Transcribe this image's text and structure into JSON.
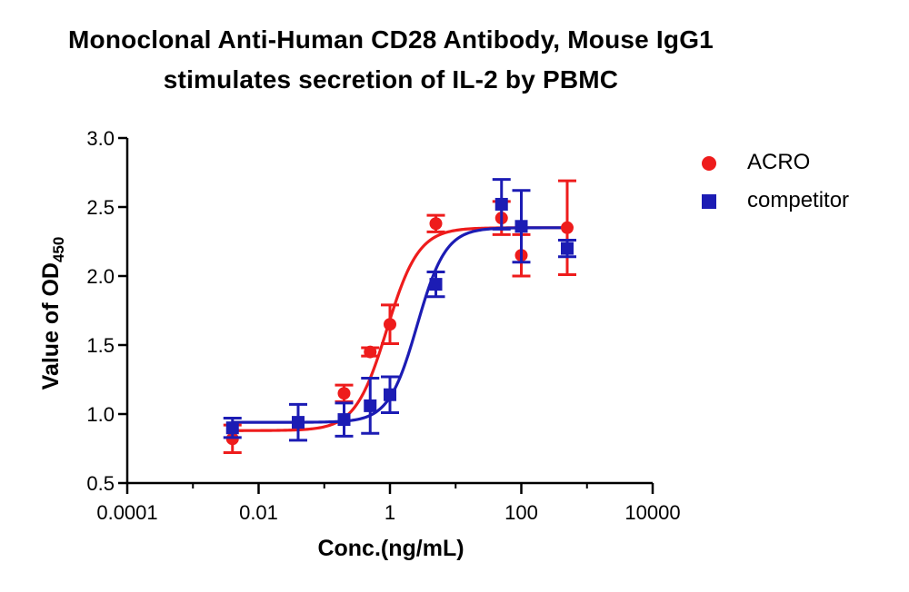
{
  "chart_data": {
    "type": "scatter",
    "title_line1": "Monoclonal Anti-Human CD28 Antibody, Mouse IgG1",
    "title_line2": "stimulates secretion of IL-2 by PBMC",
    "xlabel": "Conc.(ng/mL)",
    "ylabel_main": "Value of OD",
    "ylabel_sub": "450",
    "x_scale": "log",
    "xlim": [
      0.0001,
      10000
    ],
    "ylim": [
      0.5,
      3.0
    ],
    "x_ticks": [
      0.0001,
      0.01,
      1,
      100,
      10000
    ],
    "x_tick_labels": [
      "0.0001",
      "0.01",
      "1",
      "100",
      "10000"
    ],
    "y_ticks": [
      0.5,
      1.0,
      1.5,
      2.0,
      2.5,
      3.0
    ],
    "y_tick_labels": [
      "0.5",
      "1.0",
      "1.5",
      "2.0",
      "2.5",
      "3.0"
    ],
    "grid": false,
    "legend_position": "top-right",
    "series": [
      {
        "name": "ACRO",
        "color": "#ee1c1c",
        "marker": "circle",
        "points": [
          {
            "x": 0.004,
            "y": 0.82,
            "err": 0.1
          },
          {
            "x": 0.2,
            "y": 1.15,
            "err": 0.06
          },
          {
            "x": 0.5,
            "y": 1.45,
            "err": 0.03
          },
          {
            "x": 1.0,
            "y": 1.65,
            "err": 0.14
          },
          {
            "x": 5.0,
            "y": 2.38,
            "err": 0.06
          },
          {
            "x": 50.0,
            "y": 2.42,
            "err": 0.12
          },
          {
            "x": 100.0,
            "y": 2.15,
            "err": 0.15
          },
          {
            "x": 500.0,
            "y": 2.35,
            "err": 0.34
          }
        ],
        "fit": {
          "bottom": 0.88,
          "top": 2.35,
          "ec50": 0.9,
          "hill": 1.8
        }
      },
      {
        "name": "competitor",
        "color": "#1c1cb4",
        "marker": "square",
        "points": [
          {
            "x": 0.004,
            "y": 0.9,
            "err": 0.07
          },
          {
            "x": 0.04,
            "y": 0.94,
            "err": 0.13
          },
          {
            "x": 0.2,
            "y": 0.96,
            "err": 0.12
          },
          {
            "x": 0.5,
            "y": 1.06,
            "err": 0.2
          },
          {
            "x": 1.0,
            "y": 1.14,
            "err": 0.13
          },
          {
            "x": 5.0,
            "y": 1.94,
            "err": 0.09
          },
          {
            "x": 50.0,
            "y": 2.52,
            "err": 0.18
          },
          {
            "x": 100.0,
            "y": 2.36,
            "err": 0.26
          },
          {
            "x": 500.0,
            "y": 2.2,
            "err": 0.06
          }
        ],
        "fit": {
          "bottom": 0.94,
          "top": 2.35,
          "ec50": 2.6,
          "hill": 2.0
        }
      }
    ]
  }
}
